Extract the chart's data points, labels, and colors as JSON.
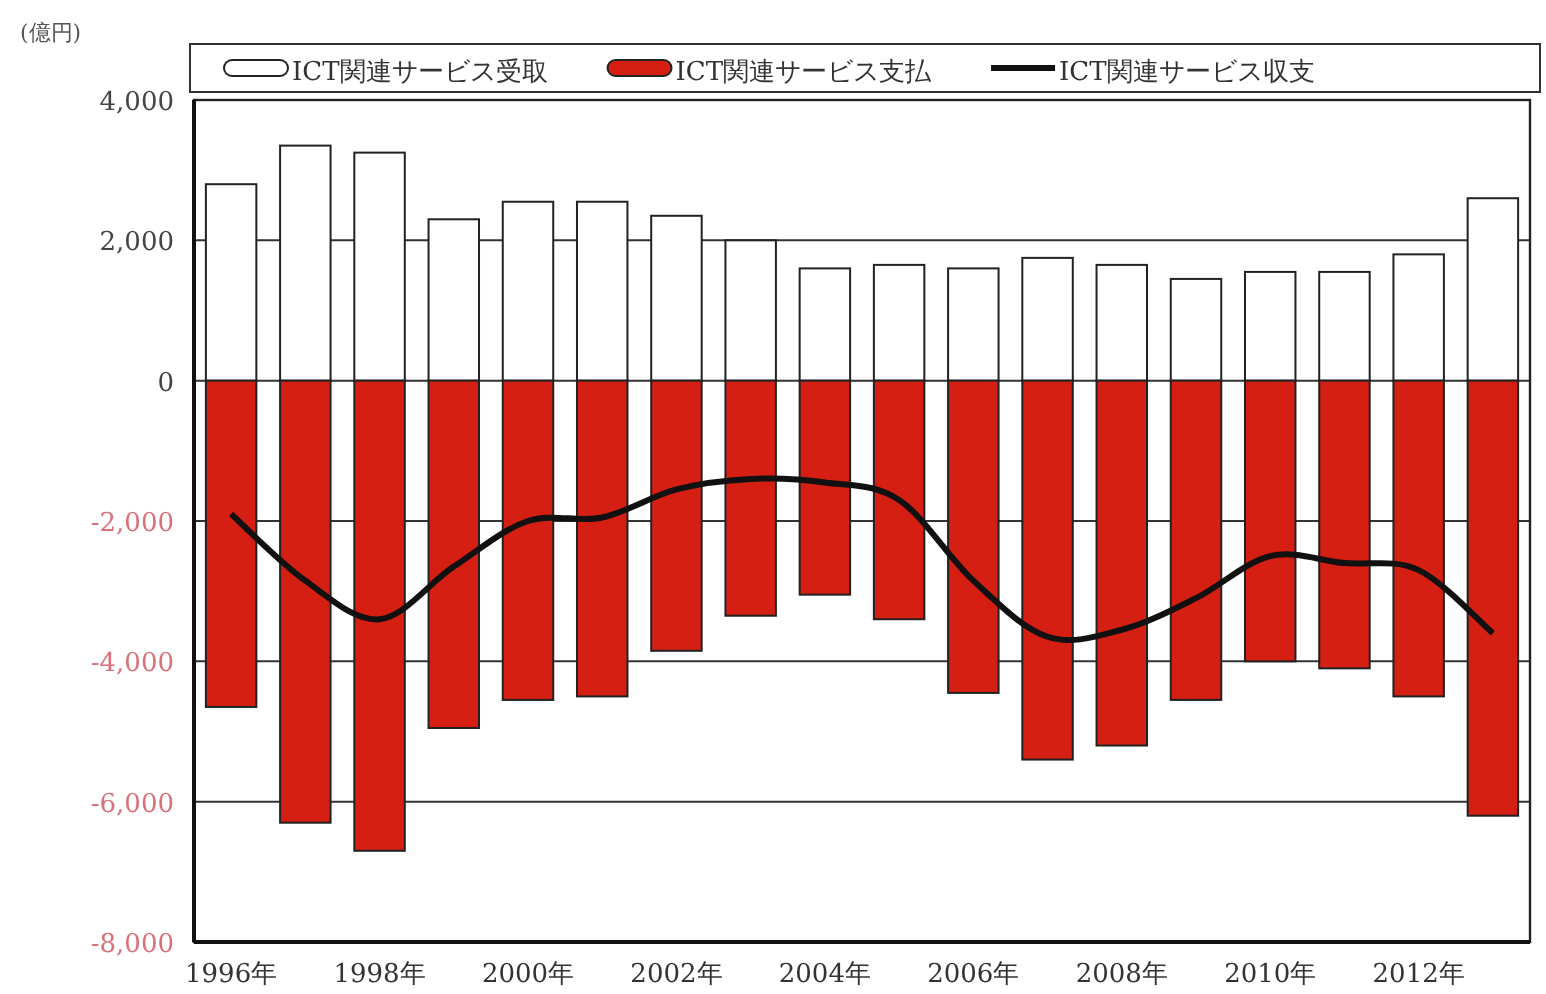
{
  "chart_data": {
    "type": "bar",
    "stacked": true,
    "ylabel": "(億円)",
    "categories": [
      "1996年",
      null,
      "1998年",
      null,
      "2000年",
      null,
      "2002年",
      null,
      "2004年",
      null,
      "2006年",
      null,
      "2008年",
      null,
      "2010年",
      null,
      "2012年",
      null
    ],
    "series": [
      {
        "name": "ICT関連サービス受取",
        "color": "#ffffff",
        "values": [
          2800,
          3350,
          3250,
          2300,
          2550,
          2550,
          2350,
          2000,
          1600,
          1650,
          1600,
          1750,
          1650,
          1450,
          1550,
          1550,
          1800,
          2600
        ]
      },
      {
        "name": "ICT関連サービス支払",
        "color": "#d41f12",
        "values": [
          -4650,
          -6300,
          -6700,
          -4950,
          -4550,
          -4500,
          -3850,
          -3350,
          -3050,
          -3400,
          -4450,
          -5400,
          -5200,
          -4550,
          -4000,
          -4100,
          -4500,
          -6200
        ]
      },
      {
        "name": "ICT関連サービス収支",
        "type": "line",
        "color": "#111111",
        "values": [
          -1900,
          -2850,
          -3400,
          -2650,
          -2000,
          -1950,
          -1550,
          -1400,
          -1450,
          -1700,
          -2850,
          -3650,
          -3550,
          -3100,
          -2500,
          -2600,
          -2700,
          -3600
        ]
      }
    ],
    "ylim": [
      -8000,
      4000
    ],
    "yticks": [
      {
        "value": -8000,
        "label": "-8,000"
      },
      {
        "value": -6000,
        "label": "-6,000"
      },
      {
        "value": -4000,
        "label": "-4,000"
      },
      {
        "value": -2000,
        "label": "-2,000"
      },
      0,
      {
        "value": 2000,
        "label": "2,000"
      },
      {
        "value": 4000,
        "label": "4,000"
      }
    ],
    "grid": "y",
    "legend": "top",
    "marker": "none"
  }
}
